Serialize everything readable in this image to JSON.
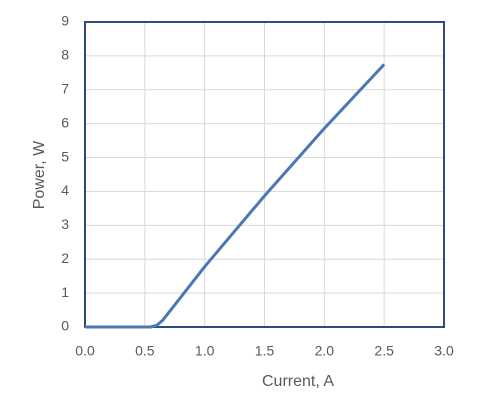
{
  "chart_data": {
    "type": "line",
    "x_label": "Current, A",
    "y_label": "Power, W",
    "x": [
      0,
      0.55,
      0.6,
      0.65,
      1.0,
      1.5,
      2.0,
      2.5
    ],
    "series": [
      {
        "name": "Power",
        "color": "#4a78b5",
        "values": [
          0,
          0,
          0.05,
          0.2,
          1.78,
          3.87,
          5.86,
          7.75
        ]
      }
    ],
    "xlim": [
      0,
      3
    ],
    "ylim": [
      0,
      9
    ],
    "xticks": [
      {
        "value": 0,
        "label": "0.0"
      },
      {
        "value": 0.5,
        "label": "0.5"
      },
      {
        "value": 1,
        "label": "1.0"
      },
      {
        "value": 1.5,
        "label": "1.5"
      },
      {
        "value": 2,
        "label": "2.0"
      },
      {
        "value": 2.5,
        "label": "2.5"
      },
      {
        "value": 3,
        "label": "3.0"
      }
    ],
    "yticks": [
      0,
      1,
      2,
      3,
      4,
      5,
      6,
      7,
      8,
      9
    ],
    "grid": true
  }
}
